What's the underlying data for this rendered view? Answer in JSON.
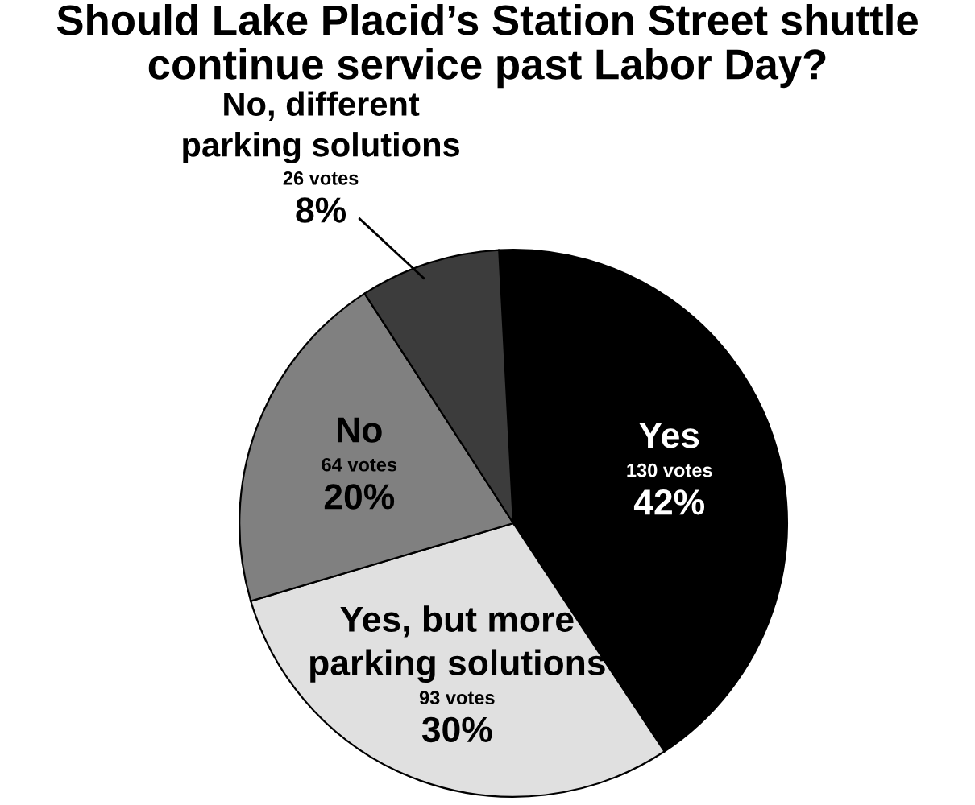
{
  "chart_data": {
    "type": "pie",
    "title": "Should Lake Placid’s Station Street shuttle continue service past Labor Day?",
    "categories": [
      "Yes",
      "Yes, but more parking solutions",
      "No",
      "No, different parking solutions"
    ],
    "values": [
      130,
      93,
      64,
      26
    ],
    "value_labels": [
      "130 votes\n42%",
      "93 votes\n30%",
      "64 votes\n20%",
      "26 votes\n8%"
    ],
    "colors": [
      "#000000",
      "#e0e0e0",
      "#808080",
      "#3c3c3c"
    ],
    "legend": false
  }
}
